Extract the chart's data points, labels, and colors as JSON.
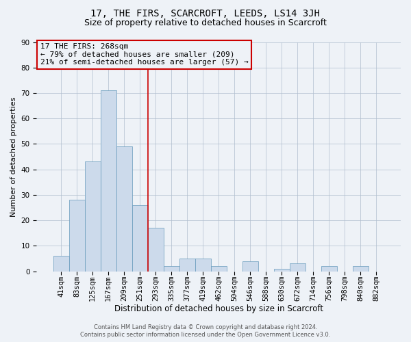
{
  "title1": "17, THE FIRS, SCARCROFT, LEEDS, LS14 3JH",
  "title2": "Size of property relative to detached houses in Scarcroft",
  "xlabel": "Distribution of detached houses by size in Scarcroft",
  "ylabel": "Number of detached properties",
  "footer1": "Contains HM Land Registry data © Crown copyright and database right 2024.",
  "footer2": "Contains public sector information licensed under the Open Government Licence v3.0.",
  "annotation_line1": "17 THE FIRS: 268sqm",
  "annotation_line2": "← 79% of detached houses are smaller (209)",
  "annotation_line3": "21% of semi-detached houses are larger (57) →",
  "bar_color": "#ccdaeb",
  "bar_edge_color": "#6699bb",
  "vline_color": "#cc0000",
  "annotation_box_edgecolor": "#cc0000",
  "bg_color": "#eef2f7",
  "categories": [
    "41sqm",
    "83sqm",
    "125sqm",
    "167sqm",
    "209sqm",
    "251sqm",
    "293sqm",
    "335sqm",
    "377sqm",
    "419sqm",
    "462sqm",
    "504sqm",
    "546sqm",
    "588sqm",
    "630sqm",
    "672sqm",
    "714sqm",
    "756sqm",
    "798sqm",
    "840sqm",
    "882sqm"
  ],
  "values": [
    6,
    28,
    43,
    71,
    49,
    26,
    17,
    2,
    5,
    5,
    2,
    0,
    4,
    0,
    1,
    3,
    0,
    2,
    0,
    2,
    0
  ],
  "ylim": [
    0,
    90
  ],
  "yticks": [
    0,
    10,
    20,
    30,
    40,
    50,
    60,
    70,
    80,
    90
  ],
  "vline_x": 5.5,
  "grid_color": "#b0bece",
  "title1_fontsize": 10,
  "title2_fontsize": 9,
  "tick_label_fontsize": 7.5,
  "ylabel_fontsize": 8,
  "xlabel_fontsize": 8.5,
  "annot_fontsize": 8,
  "footer_fontsize": 6
}
